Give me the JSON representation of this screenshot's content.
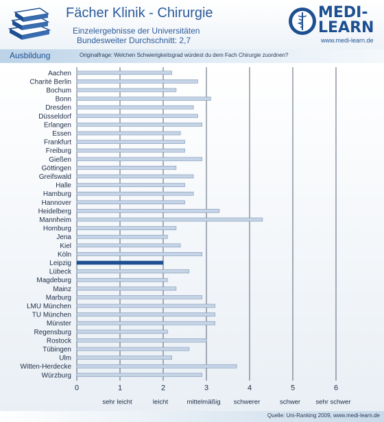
{
  "header": {
    "title": "Fächer Klinik - Chirurgie",
    "subtitle_line1": "Einzelergebnisse der Universitäten",
    "subtitle_line2": "Bundesweiter Durchschnitt: 2,7",
    "section_label": "Ausbildung",
    "question": "Originalfrage: Welchen Schwierigkeitsgrad würdest du dem Fach Chirurgie zuordnen?"
  },
  "logo": {
    "line1": "MEDI-",
    "line2": "LEARN",
    "url": "www.medi-learn.de",
    "icon": "caduceus-globe-icon",
    "color": "#1d4f91"
  },
  "decor": {
    "icon": "books-icon"
  },
  "footer": {
    "source": "Quelle: Uni-Ranking 2009, www.medi-learn.de"
  },
  "colors": {
    "bar": "#c5d4e6",
    "bar_edge": "#7d95b3",
    "highlight": "#1d4f91",
    "axis_text": "#1a2a45",
    "accent": "#2a5a9a"
  },
  "chart_data": {
    "type": "bar",
    "orientation": "horizontal",
    "title": "Fächer Klinik - Chirurgie",
    "categories": [
      "Aachen",
      "Charité Berlin",
      "Bochum",
      "Bonn",
      "Dresden",
      "Düsseldorf",
      "Erlangen",
      "Essen",
      "Frankfurt",
      "Freiburg",
      "Gießen",
      "Göttingen",
      "Greifswald",
      "Halle",
      "Hamburg",
      "Hannover",
      "Heidelberg",
      "Mannheim",
      "Homburg",
      "Jena",
      "Kiel",
      "Köln",
      "Leipzig",
      "Lübeck",
      "Magdeburg",
      "Mainz",
      "Marburg",
      "LMU München",
      "TU München",
      "Münster",
      "Regensburg",
      "Rostock",
      "Tübingen",
      "Ulm",
      "Witten-Herdecke",
      "Würzburg"
    ],
    "values": [
      2.2,
      2.8,
      2.3,
      3.1,
      2.7,
      2.8,
      2.9,
      2.4,
      2.5,
      2.5,
      2.9,
      2.3,
      2.7,
      2.5,
      2.7,
      2.5,
      3.3,
      4.3,
      2.3,
      2.1,
      2.4,
      2.9,
      2.0,
      2.6,
      2.1,
      2.3,
      2.9,
      3.2,
      3.2,
      3.2,
      2.1,
      3.0,
      2.6,
      2.2,
      3.7,
      2.9
    ],
    "highlight_category": "Leipzig",
    "xlim": [
      0,
      6
    ],
    "xticks": [
      0,
      1,
      2,
      3,
      4,
      5,
      6
    ],
    "xtick_labels": [
      "0",
      "1",
      "2",
      "3",
      "4",
      "5",
      "6"
    ],
    "scale_labels": [
      "sehr leicht",
      "leicht",
      "mittelmäßig",
      "schwerer",
      "schwer",
      "sehr schwer"
    ],
    "grid": true
  }
}
